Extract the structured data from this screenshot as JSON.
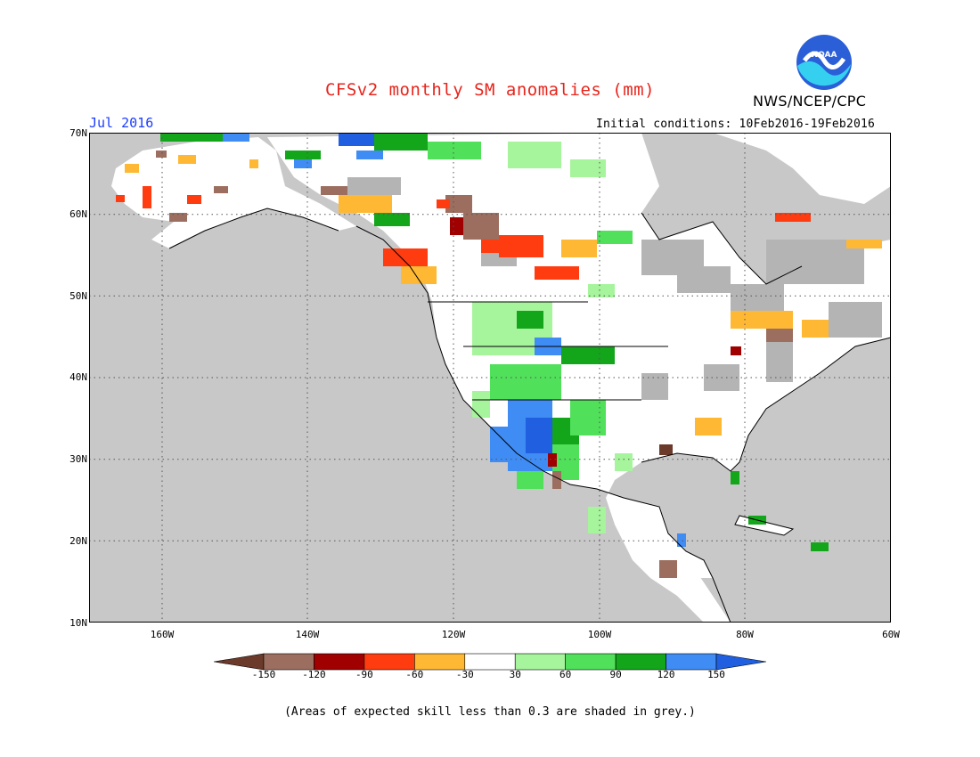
{
  "title": "CFSv2 monthly SM anomalies (mm)",
  "agency": "NWS/NCEP/CPC",
  "logo_text": "NOAA",
  "valid_month": "Jul 2016",
  "initial_conditions": "Initial conditions: 10Feb2016-19Feb2016",
  "lat_labels": [
    "70N",
    "60N",
    "50N",
    "40N",
    "30N",
    "20N",
    "10N"
  ],
  "lon_labels": [
    "160W",
    "140W",
    "120W",
    "100W",
    "80W",
    "60W"
  ],
  "colorbar": {
    "ticks": [
      "-150",
      "-120",
      "-90",
      "-60",
      "-30",
      "30",
      "60",
      "90",
      "120",
      "150"
    ],
    "colors": [
      "#6b3a2a",
      "#9c6e60",
      "#a00000",
      "#ff3b10",
      "#ffb833",
      "#ffffff",
      "#a6f49c",
      "#50e05a",
      "#13a51a",
      "#3f8cf5",
      "#1f5fe0"
    ]
  },
  "note": "(Areas of expected skill less than 0.3 are shaded in grey.)",
  "colors": {
    "ocean": "#c8c8c8",
    "skill_grey": "#b4b4b4",
    "land": "#ffffff",
    "title": "#e8251c",
    "month": "#1b3dff"
  }
}
